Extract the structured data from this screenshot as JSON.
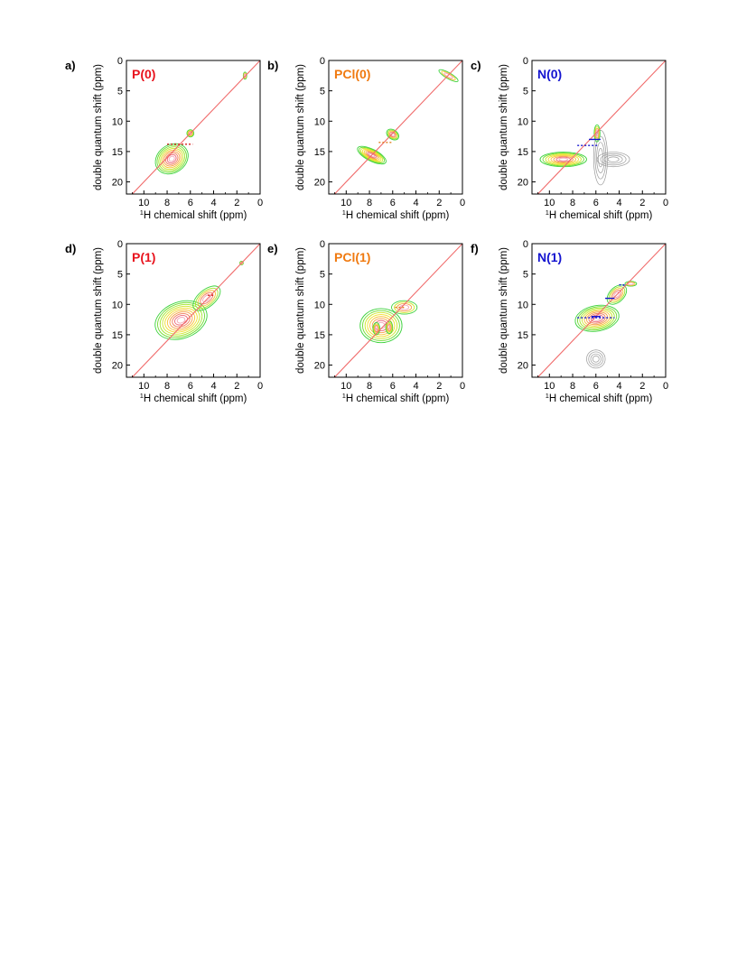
{
  "chart_data": [
    {
      "panel_letter": "a)",
      "title": "P(0)",
      "title_color": "#e8141e",
      "type": "contour",
      "xlabel_sup": "1",
      "xlabel_main": "H chemical shift (ppm)",
      "ylabel": "double quantum shift (ppm)",
      "xlim": [
        11.5,
        0
      ],
      "ylim": [
        0,
        22
      ],
      "xticks": [
        10,
        8,
        6,
        4,
        2,
        0
      ],
      "yticks": [
        0,
        5,
        10,
        15,
        20
      ],
      "diagonal": {
        "y_equals": "2x",
        "color": "#f06a6a"
      },
      "peaks": [
        {
          "x": 7.6,
          "y": 16.2,
          "sx": 1.5,
          "sy": 2.3,
          "rot": 35,
          "levels": 9
        },
        {
          "x": 6.0,
          "y": 12.0,
          "sx": 0.3,
          "sy": 0.6,
          "rot": 0,
          "levels": 4
        },
        {
          "x": 1.3,
          "y": 2.5,
          "sx": 0.15,
          "sy": 0.6,
          "rot": 0,
          "levels": 3
        }
      ],
      "guide_lines": [
        {
          "x1": 8.0,
          "x2": 5.8,
          "y": 13.8,
          "color": "#d42020",
          "dashed": true
        }
      ]
    },
    {
      "panel_letter": "b)",
      "title": "PCl(0)",
      "title_color": "#f07a10",
      "type": "contour",
      "xlabel_sup": "1",
      "xlabel_main": "H chemical shift (ppm)",
      "ylabel": "double quantum shift (ppm)",
      "xlim": [
        11.5,
        0
      ],
      "ylim": [
        0,
        22
      ],
      "xticks": [
        10,
        8,
        6,
        4,
        2,
        0
      ],
      "yticks": [
        0,
        5,
        10,
        15,
        20
      ],
      "diagonal": {
        "y_equals": "2x",
        "color": "#f06a6a"
      },
      "peaks": [
        {
          "x": 7.8,
          "y": 15.6,
          "sx": 0.5,
          "sy": 2.6,
          "rot": 63,
          "levels": 8
        },
        {
          "x": 6.0,
          "y": 12.2,
          "sx": 0.4,
          "sy": 1.1,
          "rot": 55,
          "levels": 5
        },
        {
          "x": 1.2,
          "y": 2.5,
          "sx": 0.25,
          "sy": 1.8,
          "rot": 60,
          "levels": 3
        }
      ],
      "guide_lines": [
        {
          "x1": 7.2,
          "x2": 6.0,
          "y": 13.5,
          "color": "#e08020",
          "dashed": true
        }
      ]
    },
    {
      "panel_letter": "c)",
      "title": "N(0)",
      "title_color": "#1414d0",
      "type": "contour",
      "xlabel_sup": "1",
      "xlabel_main": "H chemical shift (ppm)",
      "ylabel": "double quantum shift (ppm)",
      "xlim": [
        11.5,
        0
      ],
      "ylim": [
        0,
        22
      ],
      "xticks": [
        10,
        8,
        6,
        4,
        2,
        0
      ],
      "yticks": [
        0,
        5,
        10,
        15,
        20
      ],
      "diagonal": {
        "y_equals": "2x",
        "color": "#f06a6a"
      },
      "peaks": [
        {
          "x": 8.8,
          "y": 16.3,
          "sx": 2.0,
          "sy": 1.2,
          "rot": 0,
          "levels": 8
        },
        {
          "x": 5.9,
          "y": 12.0,
          "sx": 0.25,
          "sy": 1.4,
          "rot": 0,
          "levels": 4
        }
      ],
      "gray_regions": [
        {
          "x": 5.6,
          "y": 16.0,
          "sx": 0.6,
          "sy": 4.5
        },
        {
          "x": 4.5,
          "y": 16.3,
          "sx": 1.4,
          "sy": 1.2
        }
      ],
      "guide_lines": [
        {
          "x1": 7.6,
          "x2": 5.8,
          "y": 14.0,
          "color": "#1414d0",
          "dashed": true
        },
        {
          "x1": 6.6,
          "x2": 5.6,
          "y": 13.0,
          "color": "#1414d0",
          "dashed": false
        }
      ]
    },
    {
      "panel_letter": "d)",
      "title": "P(1)",
      "title_color": "#e8141e",
      "type": "contour",
      "xlabel_sup": "1",
      "xlabel_main": "H chemical shift (ppm)",
      "ylabel": "double quantum shift (ppm)",
      "xlim": [
        11.5,
        0
      ],
      "ylim": [
        0,
        22
      ],
      "xticks": [
        10,
        8,
        6,
        4,
        2,
        0
      ],
      "yticks": [
        0,
        5,
        10,
        15,
        20
      ],
      "diagonal": {
        "y_equals": "2x",
        "color": "#f06a6a"
      },
      "peaks": [
        {
          "x": 6.8,
          "y": 12.6,
          "sx": 2.3,
          "sy": 3.0,
          "rot": 20,
          "levels": 10
        },
        {
          "x": 4.6,
          "y": 9.0,
          "sx": 1.4,
          "sy": 1.4,
          "rot": 40,
          "levels": 5
        },
        {
          "x": 1.6,
          "y": 3.2,
          "sx": 0.15,
          "sy": 0.3,
          "rot": 0,
          "levels": 3
        }
      ],
      "guide_lines": [
        {
          "x1": 4.5,
          "x2": 3.9,
          "y": 8.5,
          "color": "#d42020",
          "dashed": true
        }
      ]
    },
    {
      "panel_letter": "e)",
      "title": "PCl(1)",
      "title_color": "#f07a10",
      "type": "contour",
      "xlabel_sup": "1",
      "xlabel_main": "H chemical shift (ppm)",
      "ylabel": "double quantum shift (ppm)",
      "xlim": [
        11.5,
        0
      ],
      "ylim": [
        0,
        22
      ],
      "xticks": [
        10,
        8,
        6,
        4,
        2,
        0
      ],
      "yticks": [
        0,
        5,
        10,
        15,
        20
      ],
      "diagonal": {
        "y_equals": "2x",
        "color": "#f06a6a"
      },
      "peaks": [
        {
          "x": 7.0,
          "y": 13.5,
          "sx": 1.8,
          "sy": 2.8,
          "rot": 0,
          "levels": 8
        },
        {
          "x": 7.4,
          "y": 14.0,
          "sx": 0.3,
          "sy": 1.0,
          "rot": 0,
          "levels": 4
        },
        {
          "x": 6.3,
          "y": 13.8,
          "sx": 0.3,
          "sy": 1.0,
          "rot": 0,
          "levels": 4
        },
        {
          "x": 5.0,
          "y": 10.5,
          "sx": 1.1,
          "sy": 1.1,
          "rot": 0,
          "levels": 4
        }
      ],
      "guide_lines": [
        {
          "x1": 5.8,
          "x2": 4.9,
          "y": 10.5,
          "color": "#e08020",
          "dashed": true
        }
      ]
    },
    {
      "panel_letter": "f)",
      "title": "N(1)",
      "title_color": "#1414d0",
      "type": "contour",
      "xlabel_sup": "1",
      "xlabel_main": "H chemical shift (ppm)",
      "ylabel": "double quantum shift (ppm)",
      "xlim": [
        11.5,
        0
      ],
      "ylim": [
        0,
        22
      ],
      "xticks": [
        10,
        8,
        6,
        4,
        2,
        0
      ],
      "yticks": [
        0,
        5,
        10,
        15,
        20
      ],
      "diagonal": {
        "y_equals": "2x",
        "color": "#f06a6a"
      },
      "peaks": [
        {
          "x": 5.9,
          "y": 12.3,
          "sx": 1.9,
          "sy": 2.1,
          "rot": 10,
          "levels": 9
        },
        {
          "x": 4.2,
          "y": 8.4,
          "sx": 1.0,
          "sy": 1.2,
          "rot": 45,
          "levels": 5
        },
        {
          "x": 3.0,
          "y": 6.6,
          "sx": 0.5,
          "sy": 0.4,
          "rot": 0,
          "levels": 3
        }
      ],
      "gray_regions": [
        {
          "x": 6.0,
          "y": 19.0,
          "sx": 0.8,
          "sy": 1.5
        }
      ],
      "guide_lines": [
        {
          "x1": 7.6,
          "x2": 4.4,
          "y": 12.2,
          "color": "#1414d0",
          "dashed": true
        },
        {
          "x1": 6.4,
          "x2": 5.6,
          "y": 12.0,
          "color": "#1414d0",
          "dashed": false
        },
        {
          "x1": 5.2,
          "x2": 4.4,
          "y": 9.0,
          "color": "#1414d0",
          "dashed": false
        },
        {
          "x1": 4.0,
          "x2": 3.4,
          "y": 6.8,
          "color": "#1414d0",
          "dashed": true
        }
      ]
    }
  ]
}
